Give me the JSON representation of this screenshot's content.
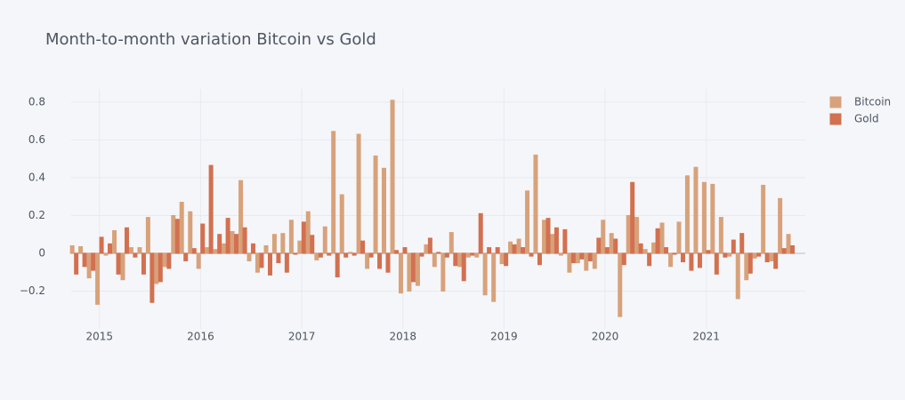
{
  "chart_data": {
    "type": "bar",
    "title": "Month-to-month variation Bitcoin vs Gold",
    "x": [
      2014.75,
      2014.833,
      2014.917,
      2015.0,
      2015.083,
      2015.167,
      2015.25,
      2015.333,
      2015.417,
      2015.5,
      2015.583,
      2015.667,
      2015.75,
      2015.833,
      2015.917,
      2016.0,
      2016.083,
      2016.167,
      2016.25,
      2016.333,
      2016.417,
      2016.5,
      2016.583,
      2016.667,
      2016.75,
      2016.833,
      2016.917,
      2017.0,
      2017.083,
      2017.167,
      2017.25,
      2017.333,
      2017.417,
      2017.5,
      2017.583,
      2017.667,
      2017.75,
      2017.833,
      2017.917,
      2018.0,
      2018.083,
      2018.167,
      2018.25,
      2018.333,
      2018.417,
      2018.5,
      2018.583,
      2018.667,
      2018.75,
      2018.833,
      2018.917,
      2019.0,
      2019.083,
      2019.167,
      2019.25,
      2019.333,
      2019.417,
      2019.5,
      2019.583,
      2019.667,
      2019.75,
      2019.833,
      2019.917,
      2020.0,
      2020.083,
      2020.167,
      2020.25,
      2020.333,
      2020.417,
      2020.5,
      2020.583,
      2020.667,
      2020.75,
      2020.833,
      2020.917,
      2021.0,
      2021.083,
      2021.167,
      2021.25,
      2021.333,
      2021.417,
      2021.5,
      2021.583,
      2021.667,
      2021.75,
      2021.833
    ],
    "series": [
      {
        "name": "Bitcoin",
        "color": "#fdbf91",
        "values": [
          0.04,
          0.035,
          -0.13,
          -0.27,
          -0.01,
          0.12,
          -0.14,
          0.03,
          0.03,
          0.19,
          -0.16,
          -0.07,
          0.2,
          0.27,
          0.22,
          -0.08,
          0.03,
          0.02,
          0.05,
          0.115,
          0.385,
          -0.04,
          -0.1,
          0.04,
          0.1,
          0.105,
          0.175,
          0.065,
          0.22,
          -0.035,
          0.14,
          0.645,
          0.31,
          0.005,
          0.63,
          -0.08,
          0.515,
          0.45,
          0.81,
          -0.21,
          -0.2,
          -0.17,
          0.045,
          -0.07,
          -0.2,
          0.11,
          -0.07,
          -0.02,
          -0.02,
          -0.22,
          -0.255,
          -0.055,
          0.06,
          0.075,
          0.33,
          0.52,
          0.175,
          0.1,
          -0.01,
          -0.1,
          -0.05,
          -0.09,
          -0.08,
          0.175,
          0.105,
          -0.335,
          0.2,
          0.19,
          0.02,
          0.055,
          0.16,
          -0.07,
          0.165,
          0.41,
          0.455,
          0.375,
          0.365,
          0.19,
          -0.015,
          -0.24,
          -0.14,
          -0.025,
          0.36,
          -0.04,
          0.29,
          0.1
        ]
      },
      {
        "name": "Gold",
        "color": "#f7845e",
        "values": [
          -0.11,
          -0.07,
          -0.09,
          0.085,
          0.05,
          -0.11,
          0.135,
          -0.02,
          -0.11,
          -0.26,
          -0.15,
          -0.08,
          0.18,
          -0.04,
          0.025,
          0.155,
          0.465,
          0.1,
          0.185,
          0.1,
          0.135,
          0.05,
          -0.075,
          -0.115,
          -0.05,
          -0.1,
          -0.005,
          0.165,
          0.095,
          -0.02,
          -0.01,
          -0.125,
          -0.02,
          -0.01,
          0.065,
          -0.02,
          -0.08,
          -0.1,
          0.015,
          0.03,
          -0.15,
          -0.015,
          0.08,
          0.005,
          -0.02,
          -0.065,
          -0.145,
          -0.01,
          0.21,
          0.03,
          0.03,
          -0.065,
          0.045,
          0.03,
          -0.015,
          -0.06,
          0.185,
          0.135,
          0.125,
          -0.05,
          -0.03,
          -0.04,
          0.08,
          0.03,
          0.075,
          -0.06,
          0.375,
          0.05,
          -0.065,
          0.13,
          0.03,
          -0.005,
          -0.045,
          -0.09,
          -0.075,
          0.015,
          -0.11,
          -0.02,
          0.07,
          0.105,
          -0.105,
          -0.015,
          -0.045,
          -0.08,
          0.025,
          0.04
        ]
      }
    ],
    "xlim": [
      2014.72,
      2021.98
    ],
    "xticks": [
      2015,
      2016,
      2017,
      2018,
      2019,
      2020,
      2021
    ],
    "ylim": [
      -0.4,
      0.87
    ],
    "yticks": [
      {
        "value": -0.2,
        "label": "−0.2"
      },
      0,
      0.2,
      0.4,
      0.6,
      0.8
    ],
    "grid": true
  }
}
